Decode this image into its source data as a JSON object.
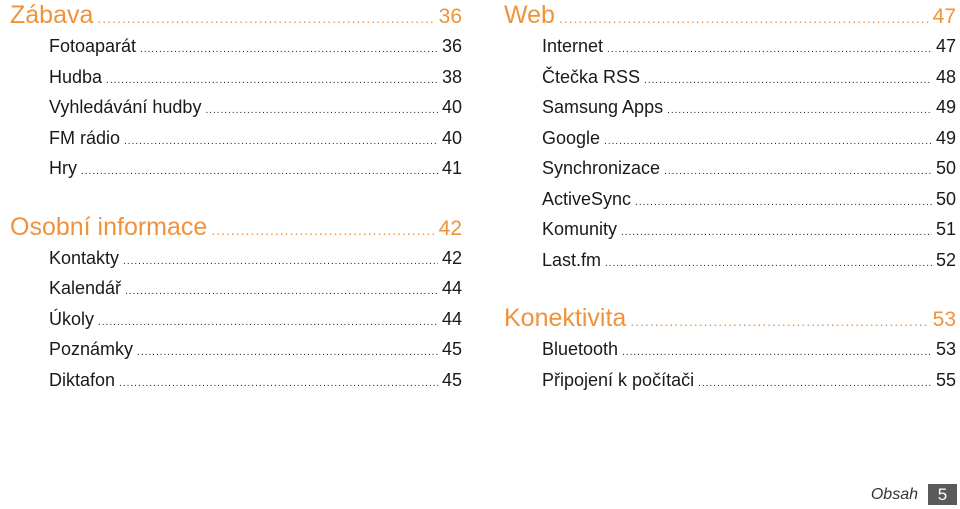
{
  "left_column": {
    "sections": [
      {
        "title": "Zábava",
        "page": "36",
        "entries": [
          {
            "label": "Fotoaparát",
            "page": "36"
          },
          {
            "label": "Hudba",
            "page": "38"
          },
          {
            "label": "Vyhledávání hudby",
            "page": "40"
          },
          {
            "label": "FM rádio",
            "page": "40"
          },
          {
            "label": "Hry",
            "page": "41"
          }
        ]
      },
      {
        "title": "Osobní informace",
        "page": "42",
        "entries": [
          {
            "label": "Kontakty",
            "page": "42"
          },
          {
            "label": "Kalendář",
            "page": "44"
          },
          {
            "label": "Úkoly",
            "page": "44"
          },
          {
            "label": "Poznámky",
            "page": "45"
          },
          {
            "label": "Diktafon",
            "page": "45"
          }
        ]
      }
    ]
  },
  "right_column": {
    "sections": [
      {
        "title": "Web",
        "page": "47",
        "entries": [
          {
            "label": "Internet",
            "page": "47"
          },
          {
            "label": "Čtečka RSS",
            "page": "48"
          },
          {
            "label": "Samsung Apps",
            "page": "49"
          },
          {
            "label": "Google",
            "page": "49"
          },
          {
            "label": "Synchronizace",
            "page": "50"
          },
          {
            "label": "ActiveSync",
            "page": "50"
          },
          {
            "label": "Komunity",
            "page": "51"
          },
          {
            "label": "Last.fm",
            "page": "52"
          }
        ]
      },
      {
        "title": "Konektivita",
        "page": "53",
        "entries": [
          {
            "label": "Bluetooth",
            "page": "53"
          },
          {
            "label": "Připojení k počítači",
            "page": "55"
          }
        ]
      }
    ]
  },
  "footer": {
    "label": "Obsah",
    "page_number": "5"
  },
  "colors": {
    "heading": "#f0923a",
    "text": "#1a1a1a",
    "page_box": "#5a5a5a"
  }
}
